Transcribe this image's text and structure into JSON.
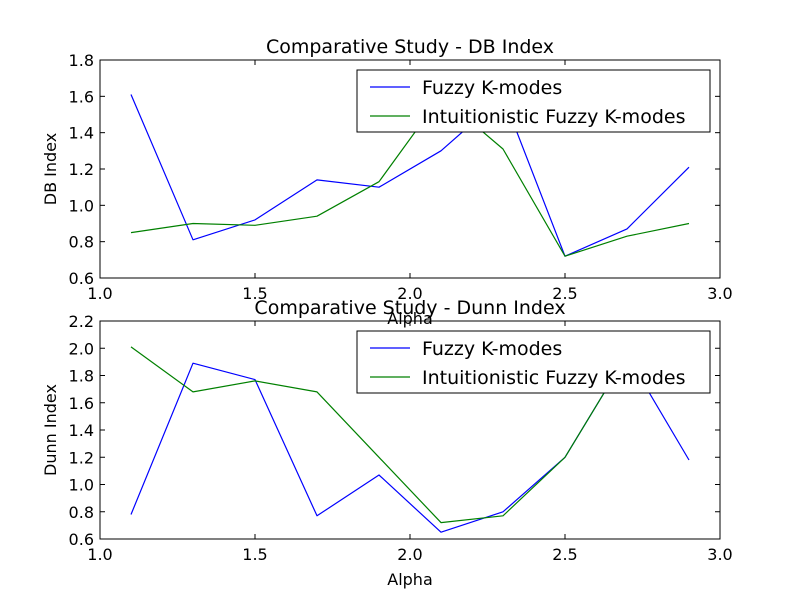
{
  "chart_data": [
    {
      "type": "line",
      "title": "Comparative Study - DB Index",
      "xlabel": "Alpha",
      "ylabel": "DB Index",
      "xlim": [
        1.0,
        3.0
      ],
      "ylim": [
        0.6,
        1.8
      ],
      "xticks": [
        "1.0",
        "1.5",
        "2.0",
        "2.5",
        "3.0"
      ],
      "yticks": [
        "0.6",
        "0.8",
        "1.0",
        "1.2",
        "1.4",
        "1.6",
        "1.8"
      ],
      "grid": false,
      "legend_position": "top-right",
      "x": [
        1.1,
        1.3,
        1.5,
        1.7,
        1.9,
        2.1,
        2.3,
        2.5,
        2.7,
        2.9
      ],
      "series": [
        {
          "name": "Fuzzy K-modes",
          "color": "#0000ff",
          "values": [
            1.61,
            0.81,
            0.92,
            1.14,
            1.1,
            1.3,
            1.6,
            0.72,
            0.87,
            1.21
          ]
        },
        {
          "name": "Intuitionistic Fuzzy K-modes",
          "color": "#008000",
          "values": [
            0.85,
            0.9,
            0.89,
            0.94,
            1.13,
            1.6,
            1.31,
            0.72,
            0.83,
            0.9
          ]
        }
      ]
    },
    {
      "type": "line",
      "title": "Comparative Study - Dunn Index",
      "xlabel": "Alpha",
      "ylabel": "Dunn Index",
      "xlim": [
        1.0,
        3.0
      ],
      "ylim": [
        0.6,
        2.2
      ],
      "xticks": [
        "1.0",
        "1.5",
        "2.0",
        "2.5",
        "3.0"
      ],
      "yticks": [
        "0.6",
        "0.8",
        "1.0",
        "1.2",
        "1.4",
        "1.6",
        "1.8",
        "2.0",
        "2.2"
      ],
      "grid": false,
      "legend_position": "top-right",
      "x": [
        1.1,
        1.3,
        1.5,
        1.7,
        1.9,
        2.1,
        2.3,
        2.5,
        2.7,
        2.9
      ],
      "series": [
        {
          "name": "Fuzzy K-modes",
          "color": "#0000ff",
          "values": [
            0.78,
            1.89,
            1.77,
            0.77,
            1.07,
            0.65,
            0.8,
            1.2,
            1.95,
            1.18
          ]
        },
        {
          "name": "Intuitionistic Fuzzy K-modes",
          "color": "#008000",
          "values": [
            2.01,
            1.68,
            1.76,
            1.68,
            1.2,
            0.72,
            0.77,
            1.2,
            1.95,
            1.95
          ]
        }
      ]
    }
  ]
}
